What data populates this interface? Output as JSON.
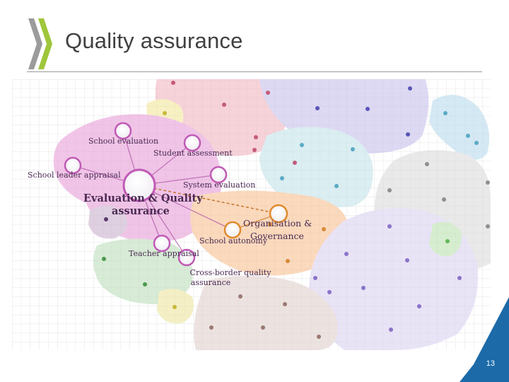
{
  "slide": {
    "title": "Quality assurance",
    "page_number": "13"
  },
  "diagram": {
    "hub_label": [
      "Evaluation & Quality",
      "assurance"
    ],
    "nodes": [
      {
        "id": "school-evaluation",
        "label": "School evaluation"
      },
      {
        "id": "student-assessment",
        "label": "Student assessment"
      },
      {
        "id": "school-leader-appraisal",
        "label": "School leader appraisal"
      },
      {
        "id": "system-evaluation",
        "label": "System evaluation"
      },
      {
        "id": "teacher-appraisal",
        "label": "Teacher appraisal"
      },
      {
        "id": "cross-border",
        "label": [
          "Cross-border quality",
          "assurance"
        ]
      },
      {
        "id": "school-autonomy",
        "label": "School autonomy"
      },
      {
        "id": "organisation-governance",
        "label": [
          "Organisation &",
          "Governance"
        ]
      }
    ]
  },
  "colors": {
    "pink": "#e9a6d6",
    "purple": "#cfc4ea",
    "blue": "#b9dbe7",
    "orange": "#f8c9a0",
    "green": "#c7e1c5",
    "grey": "#d6d6d6",
    "accent_blue": "#1c6aa8",
    "logo_green": "#9fc63b",
    "logo_grey": "#9b9b9b"
  }
}
